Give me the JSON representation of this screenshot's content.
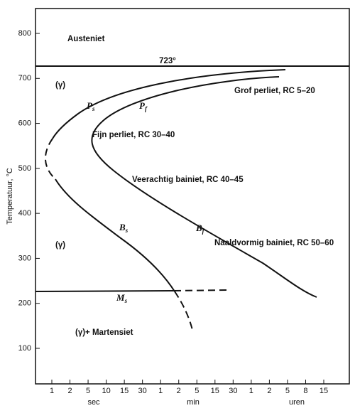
{
  "axis": {
    "y_title": "Temperatuur, °C",
    "yticks": [
      100,
      200,
      300,
      400,
      500,
      600,
      700,
      800
    ],
    "xticks": [
      "1",
      "2",
      "5",
      "10",
      "15",
      "30",
      "1",
      "2",
      "5",
      "15",
      "30",
      "1",
      "2",
      "5",
      "8",
      "15"
    ],
    "units": [
      "sec",
      "min",
      "uren"
    ]
  },
  "labels": {
    "austenite": "Austeniet",
    "a1": "723°",
    "gamma_top": "(γ)",
    "gamma_mid": "(γ)",
    "coarse": "Grof perliet, RC 5–20",
    "fine": "Fijn perliet, RC 30–40",
    "upper_bainite": "Veerachtig bainiet, RC 40–45",
    "lower_bainite": "Naaldvormig bainiet, RC 50–60",
    "martensite": "(γ)+ Martensiet",
    "ps": {
      "main": "P",
      "sub": "s"
    },
    "pf": {
      "main": "P",
      "sub": "f"
    },
    "bs": {
      "main": "B",
      "sub": "s"
    },
    "bf": {
      "main": "B",
      "sub": "f"
    },
    "ms": {
      "main": "M",
      "sub": "s"
    }
  }
}
